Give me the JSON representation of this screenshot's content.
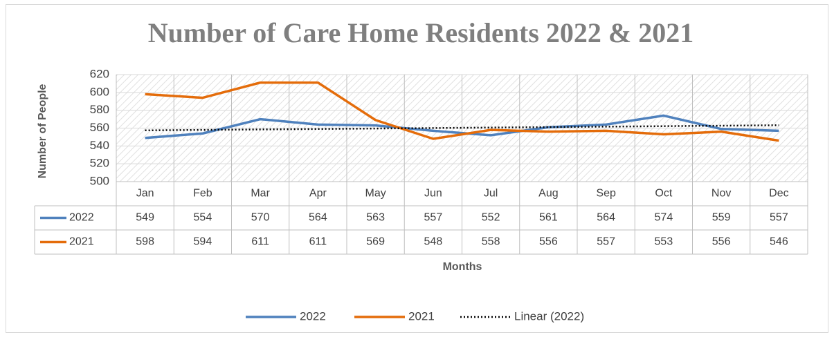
{
  "chart_data": {
    "type": "line",
    "title": "Number of Care Home Residents 2022 & 2021",
    "y_label": "Number of People",
    "x_label": "Months",
    "categories": [
      "Jan",
      "Feb",
      "Mar",
      "Apr",
      "May",
      "Jun",
      "Jul",
      "Aug",
      "Sep",
      "Oct",
      "Nov",
      "Dec"
    ],
    "series": [
      {
        "name": "2022",
        "color": "#4f81bd",
        "values": [
          549,
          554,
          570,
          564,
          563,
          557,
          552,
          561,
          564,
          574,
          559,
          557
        ]
      },
      {
        "name": "2021",
        "color": "#e46c0a",
        "values": [
          598,
          594,
          611,
          611,
          569,
          548,
          558,
          556,
          557,
          553,
          556,
          546
        ]
      }
    ],
    "trendline": {
      "name": "Linear (2022)",
      "series": 0,
      "color": "#000000"
    },
    "ylim": [
      500,
      620
    ],
    "yticks": [
      500,
      520,
      540,
      560,
      580,
      600,
      620
    ],
    "grid": true,
    "legend": "bottom",
    "data_table": true
  }
}
